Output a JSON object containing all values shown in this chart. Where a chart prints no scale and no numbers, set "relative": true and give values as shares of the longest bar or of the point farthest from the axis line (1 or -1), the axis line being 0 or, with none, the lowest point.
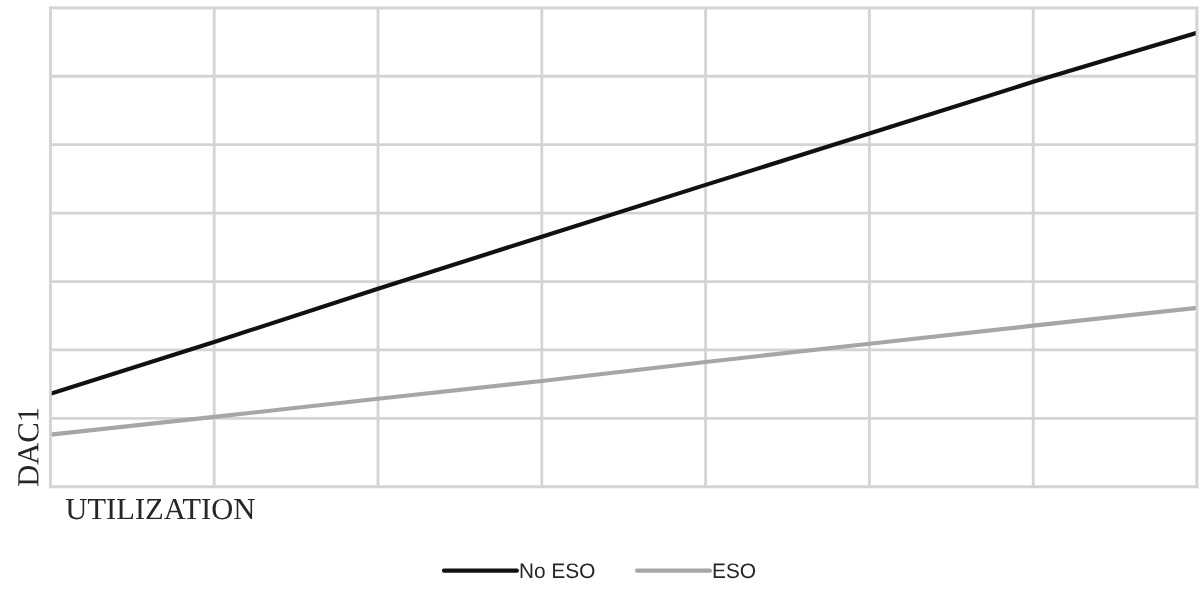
{
  "chart_data": {
    "type": "line",
    "relative": true,
    "xlabel": "UTILIZATION",
    "ylabel": "DAC1",
    "categories": [
      null,
      null,
      null,
      null,
      null,
      null,
      null,
      null
    ],
    "series": [
      {
        "name": "No ESO",
        "color": "#111111",
        "values": [
          0.205,
          0.319,
          0.436,
          0.551,
          0.665,
          0.778,
          0.892,
          1.0
        ]
      },
      {
        "name": "ESO",
        "color": "#a6a6a6",
        "values": [
          0.115,
          0.154,
          0.194,
          0.233,
          0.275,
          0.315,
          0.355,
          0.394
        ]
      }
    ],
    "grid": true,
    "legend": "bottom",
    "marker": "none",
    "line_style": "solid",
    "tick_labels": false
  }
}
